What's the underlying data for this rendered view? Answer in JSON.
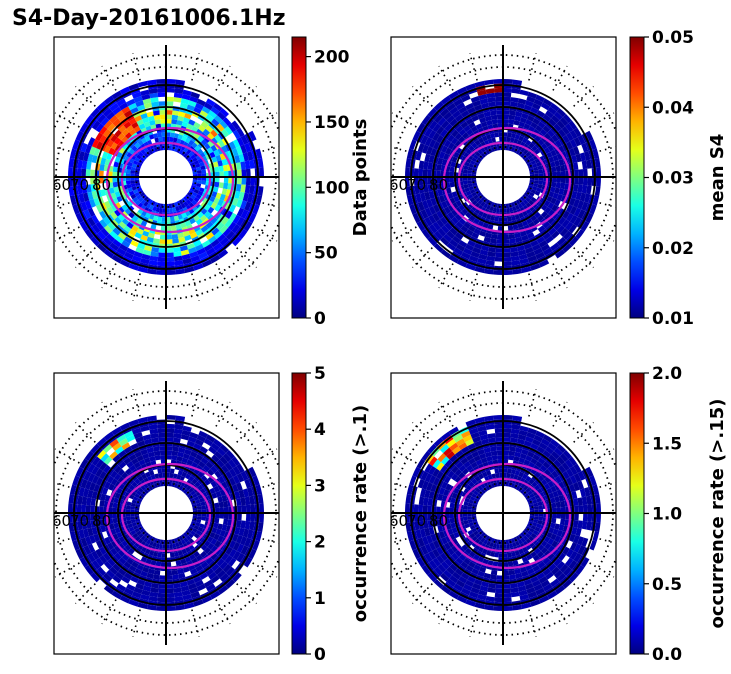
{
  "figure": {
    "title": "S4-Day-20161006.1Hz"
  },
  "chart_data": [
    {
      "type": "heatmap",
      "projection": "polar",
      "title": "",
      "colorbar": {
        "label": "Data points",
        "range": [
          0,
          215
        ],
        "ticks": [
          "0",
          "50",
          "100",
          "150",
          "200"
        ],
        "tick_values": [
          0,
          50,
          100,
          150,
          200
        ]
      },
      "lat_labels": [
        "60",
        "70",
        "80"
      ],
      "fill_profile": "data-points"
    },
    {
      "type": "heatmap",
      "projection": "polar",
      "title": "",
      "colorbar": {
        "label": "mean S4",
        "range": [
          0.01,
          0.05
        ],
        "ticks": [
          "0.01",
          "0.02",
          "0.03",
          "0.04",
          "0.05"
        ],
        "tick_values": [
          0.01,
          0.02,
          0.03,
          0.04,
          0.05
        ]
      },
      "lat_labels": [
        "60",
        "70",
        "80"
      ],
      "fill_profile": "low"
    },
    {
      "type": "heatmap",
      "projection": "polar",
      "title": "",
      "colorbar": {
        "label": "occurrence rate (>.1)",
        "range": [
          0,
          5
        ],
        "ticks": [
          "0",
          "1",
          "2",
          "3",
          "4",
          "5"
        ],
        "tick_values": [
          0,
          1,
          2,
          3,
          4,
          5
        ]
      },
      "lat_labels": [
        "60",
        "70",
        "80"
      ],
      "fill_profile": "low"
    },
    {
      "type": "heatmap",
      "projection": "polar",
      "title": "",
      "colorbar": {
        "label": "occurrence rate (>.15)",
        "range": [
          0,
          2
        ],
        "ticks": [
          "0.0",
          "0.5",
          "1.0",
          "1.5",
          "2.0"
        ],
        "tick_values": [
          0,
          0.5,
          1.0,
          1.5,
          2.0
        ]
      },
      "lat_labels": [
        "60",
        "70",
        "80"
      ],
      "fill_profile": "low"
    }
  ]
}
